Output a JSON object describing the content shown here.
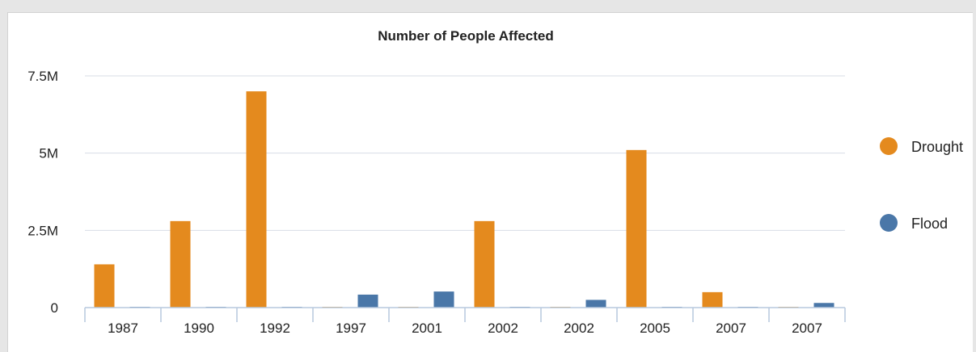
{
  "chart_data": {
    "type": "bar",
    "title": "Number of People Affected",
    "categories": [
      "1987",
      "1990",
      "1992",
      "1997",
      "2001",
      "2002",
      "2002",
      "2005",
      "2007",
      "2007"
    ],
    "series": [
      {
        "name": "Drought",
        "color": "#e48a1e",
        "values": [
          1400000,
          2800000,
          7000000,
          0,
          0,
          2800000,
          0,
          5100000,
          500000,
          0
        ]
      },
      {
        "name": "Flood",
        "color": "#4a77a8",
        "values": [
          0,
          0,
          0,
          420000,
          520000,
          0,
          250000,
          0,
          0,
          150000
        ]
      }
    ],
    "ylim": [
      0,
      7500000
    ],
    "yticks": [
      {
        "value": 0,
        "label": "0"
      },
      {
        "value": 2500000,
        "label": "2.5M"
      },
      {
        "value": 5000000,
        "label": "5M"
      },
      {
        "value": 7500000,
        "label": "7.5M"
      }
    ],
    "grid": true,
    "legend_position": "right",
    "colors": {
      "gridline": "#d8dde6",
      "axis": "#b7c9de"
    }
  }
}
